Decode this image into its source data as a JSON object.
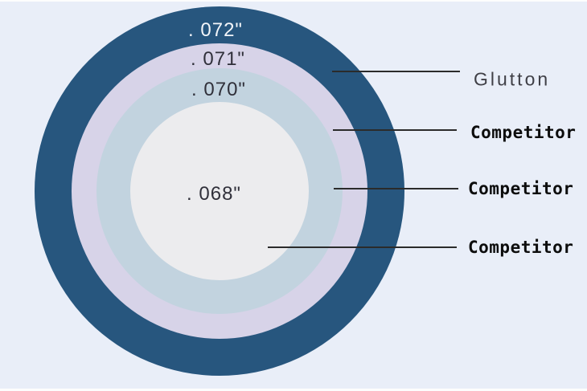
{
  "diagram": {
    "background_color": "#E9EEF8",
    "line_color": "#2B2B2B",
    "rings": [
      {
        "measurement": ". 072\"",
        "color": "#27567E",
        "label": "Glutton"
      },
      {
        "measurement": ". 071\"",
        "color": "#D7D3E8",
        "label": "Competitor"
      },
      {
        "measurement": ". 070\"",
        "color": "#C2D3DF",
        "label": "Competitor"
      },
      {
        "measurement": ". 068\"",
        "color": "#ECECEE",
        "label": "Competitor"
      }
    ]
  }
}
